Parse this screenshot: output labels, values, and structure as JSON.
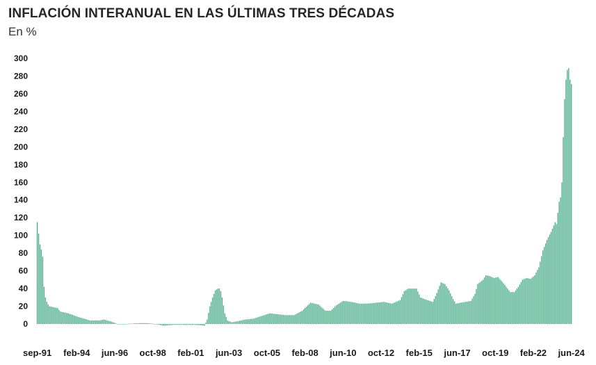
{
  "title": "INFLACIÓN INTERANUAL EN LAS ÚLTIMAS TRES DÉCADAS",
  "subtitle": "En %",
  "colors": {
    "bar": "#3aa57f",
    "bar_stroke": "#2e8f6b",
    "text": "#1a1a1a"
  },
  "chart_data": {
    "type": "bar",
    "title": "INFLACIÓN INTERANUAL EN LAS ÚLTIMAS TRES DÉCADAS",
    "subtitle": "En %",
    "xlabel": "",
    "ylabel": "",
    "ylim": [
      0,
      300
    ],
    "y_ticks": [
      0,
      20,
      40,
      60,
      80,
      100,
      120,
      140,
      160,
      180,
      200,
      220,
      240,
      260,
      280,
      300
    ],
    "grid": false,
    "legend": "none",
    "x_tick_labels": [
      "sep-91",
      "feb-94",
      "jun-96",
      "oct-98",
      "feb-01",
      "jun-03",
      "oct-05",
      "feb-08",
      "jun-10",
      "oct-12",
      "feb-15",
      "jun-17",
      "oct-19",
      "feb-22",
      "jun-24"
    ],
    "series": [
      {
        "name": "",
        "start": "sep-91",
        "end": "jun-24",
        "frequency": "monthly",
        "keypoints": [
          [
            "sep-91",
            115
          ],
          [
            "oct-91",
            102
          ],
          [
            "nov-91",
            90
          ],
          [
            "dec-91",
            84
          ],
          [
            "jan-92",
            76
          ],
          [
            "feb-92",
            42
          ],
          [
            "mar-92",
            30
          ],
          [
            "apr-92",
            25
          ],
          [
            "may-92",
            22
          ],
          [
            "jun-92",
            20
          ],
          [
            "dec-92",
            18
          ],
          [
            "feb-93",
            14
          ],
          [
            "aug-93",
            12
          ],
          [
            "mar-94",
            8
          ],
          [
            "dec-94",
            4
          ],
          [
            "jul-95",
            4
          ],
          [
            "oct-95",
            5
          ],
          [
            "mar-96",
            3
          ],
          [
            "aug-96",
            0
          ],
          [
            "jan-97",
            0
          ],
          [
            "jan-98",
            1
          ],
          [
            "jun-98",
            1
          ],
          [
            "dec-98",
            0
          ],
          [
            "jun-99",
            -2
          ],
          [
            "jan-00",
            -1
          ],
          [
            "dec-00",
            -1
          ],
          [
            "jun-01",
            -1
          ],
          [
            "dec-01",
            -2
          ],
          [
            "feb-02",
            5
          ],
          [
            "apr-02",
            20
          ],
          [
            "jun-02",
            30
          ],
          [
            "aug-02",
            38
          ],
          [
            "oct-02",
            40
          ],
          [
            "nov-02",
            40
          ],
          [
            "dec-02",
            37
          ],
          [
            "jan-03",
            30
          ],
          [
            "mar-03",
            12
          ],
          [
            "may-03",
            4
          ],
          [
            "aug-03",
            2
          ],
          [
            "dec-03",
            3
          ],
          [
            "jun-04",
            5
          ],
          [
            "dec-04",
            6
          ],
          [
            "jun-05",
            9
          ],
          [
            "dec-05",
            12
          ],
          [
            "jun-06",
            11
          ],
          [
            "dec-06",
            10
          ],
          [
            "jun-07",
            10
          ],
          [
            "dec-07",
            15
          ],
          [
            "jun-08",
            24
          ],
          [
            "dec-08",
            22
          ],
          [
            "may-09",
            15
          ],
          [
            "sep-09",
            15
          ],
          [
            "jan-10",
            21
          ],
          [
            "jun-10",
            26
          ],
          [
            "dec-10",
            25
          ],
          [
            "jun-11",
            23
          ],
          [
            "dec-11",
            23
          ],
          [
            "jun-12",
            24
          ],
          [
            "dec-12",
            25
          ],
          [
            "jun-13",
            23
          ],
          [
            "dec-13",
            27
          ],
          [
            "mar-14",
            37
          ],
          [
            "jun-14",
            40
          ],
          [
            "dec-14",
            40
          ],
          [
            "mar-15",
            30
          ],
          [
            "jun-15",
            28
          ],
          [
            "dec-15",
            25
          ],
          [
            "mar-16",
            35
          ],
          [
            "jun-16",
            47
          ],
          [
            "sep-16",
            45
          ],
          [
            "dec-16",
            38
          ],
          [
            "mar-17",
            28
          ],
          [
            "may-17",
            23
          ],
          [
            "dec-17",
            25
          ],
          [
            "apr-18",
            26
          ],
          [
            "jul-18",
            34
          ],
          [
            "sep-18",
            45
          ],
          [
            "jan-19",
            50
          ],
          [
            "mar-19",
            55
          ],
          [
            "jun-19",
            54
          ],
          [
            "sep-19",
            52
          ],
          [
            "dec-19",
            53
          ],
          [
            "mar-20",
            48
          ],
          [
            "jun-20",
            42
          ],
          [
            "sep-20",
            36
          ],
          [
            "dec-20",
            36
          ],
          [
            "mar-21",
            42
          ],
          [
            "jun-21",
            50
          ],
          [
            "sep-21",
            52
          ],
          [
            "dec-21",
            51
          ],
          [
            "mar-22",
            55
          ],
          [
            "jun-22",
            64
          ],
          [
            "sep-22",
            83
          ],
          [
            "dec-22",
            95
          ],
          [
            "mar-23",
            104
          ],
          [
            "jun-23",
            115
          ],
          [
            "jul-23",
            113
          ],
          [
            "sep-23",
            138
          ],
          [
            "oct-23",
            143
          ],
          [
            "nov-23",
            160
          ],
          [
            "dec-23",
            211
          ],
          [
            "jan-24",
            254
          ],
          [
            "feb-24",
            276
          ],
          [
            "mar-24",
            287
          ],
          [
            "apr-24",
            289
          ],
          [
            "may-24",
            276
          ],
          [
            "jun-24",
            271
          ]
        ]
      }
    ]
  }
}
